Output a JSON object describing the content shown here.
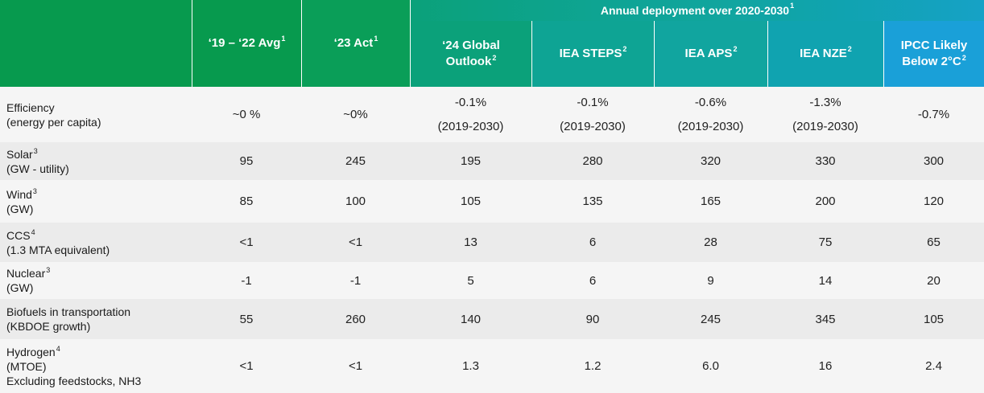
{
  "header": {
    "group_label": "Annual deployment over 2020-2030",
    "group_sup": "1",
    "columns": [
      {
        "label": "‘19 – ‘22 Avg",
        "sup": "1",
        "bg": "#079a4e"
      },
      {
        "label": "‘23 Act",
        "sup": "1",
        "bg": "#0a9e58"
      },
      {
        "label": "‘24 Global Outlook",
        "sup": "2",
        "bg": "#0ba17a"
      },
      {
        "label": "IEA STEPS",
        "sup": "2",
        "bg": "#0ea494"
      },
      {
        "label": "IEA APS",
        "sup": "2",
        "bg": "#11a59f"
      },
      {
        "label": "IEA NZE",
        "sup": "2",
        "bg": "#10a3b0"
      },
      {
        "label": "IPCC Likely Below 2°C",
        "sup": "2",
        "bg": "#1aa0d8"
      }
    ],
    "corner_bg": "#079a4e"
  },
  "rows": [
    {
      "label": "Efficiency",
      "sup": "",
      "sub": "(energy per capita)",
      "values": [
        "~0 %",
        "~0%",
        [
          "-0.1%",
          "(2019-2030)"
        ],
        [
          "-0.1%",
          "(2019-2030)"
        ],
        [
          "-0.6%",
          "(2019-2030)"
        ],
        [
          "-1.3%",
          "(2019-2030)"
        ],
        "-0.7%"
      ]
    },
    {
      "label": "Solar",
      "sup": "3",
      "sub": "(GW - utility)",
      "values": [
        "95",
        "245",
        "195",
        "280",
        "320",
        "330",
        "300"
      ]
    },
    {
      "label": "Wind",
      "sup": "3",
      "sub": "(GW)",
      "values": [
        "85",
        "100",
        "105",
        "135",
        "165",
        "200",
        "120"
      ]
    },
    {
      "label": "CCS",
      "sup": "4",
      "sub": "(1.3 MTA equivalent)",
      "values": [
        "<1",
        "<1",
        "13",
        "6",
        "28",
        "75",
        "65"
      ]
    },
    {
      "label": "Nuclear",
      "sup": "3",
      "sub": "(GW)",
      "values": [
        "-1",
        "-1",
        "5",
        "6",
        "9",
        "14",
        "20"
      ]
    },
    {
      "label": "Biofuels in transportation",
      "sup": "",
      "sub": "(KBDOE growth)",
      "values": [
        "55",
        "260",
        "140",
        "90",
        "245",
        "345",
        "105"
      ]
    },
    {
      "label": "Hydrogen",
      "sup": "4",
      "sub": "(MTOE)",
      "sub2": "Excluding feedstocks, NH3",
      "values": [
        "<1",
        "<1",
        "1.3",
        "1.2",
        "6.0",
        "16",
        "2.4"
      ]
    }
  ]
}
